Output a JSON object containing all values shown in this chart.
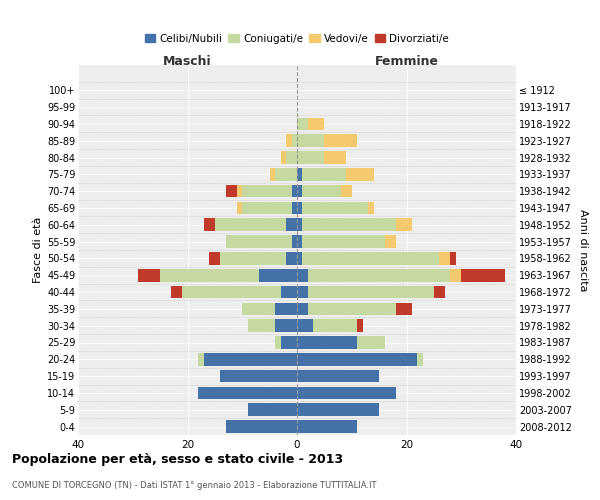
{
  "age_groups": [
    "0-4",
    "5-9",
    "10-14",
    "15-19",
    "20-24",
    "25-29",
    "30-34",
    "35-39",
    "40-44",
    "45-49",
    "50-54",
    "55-59",
    "60-64",
    "65-69",
    "70-74",
    "75-79",
    "80-84",
    "85-89",
    "90-94",
    "95-99",
    "100+"
  ],
  "birth_years": [
    "2008-2012",
    "2003-2007",
    "1998-2002",
    "1993-1997",
    "1988-1992",
    "1983-1987",
    "1978-1982",
    "1973-1977",
    "1968-1972",
    "1963-1967",
    "1958-1962",
    "1953-1957",
    "1948-1952",
    "1943-1947",
    "1938-1942",
    "1933-1937",
    "1928-1932",
    "1923-1927",
    "1918-1922",
    "1913-1917",
    "≤ 1912"
  ],
  "colors": {
    "celibi": "#4472a8",
    "coniugati": "#c5d9a0",
    "vedovi": "#f5c96e",
    "divorziati": "#c0392b"
  },
  "male": {
    "celibi": [
      13,
      9,
      18,
      14,
      17,
      3,
      4,
      4,
      3,
      7,
      2,
      1,
      2,
      1,
      1,
      0,
      0,
      0,
      0,
      0,
      0
    ],
    "coniugati": [
      0,
      0,
      0,
      0,
      1,
      1,
      5,
      6,
      18,
      18,
      12,
      12,
      13,
      9,
      9,
      4,
      2,
      1,
      0,
      0,
      0
    ],
    "vedovi": [
      0,
      0,
      0,
      0,
      0,
      0,
      0,
      0,
      0,
      0,
      0,
      0,
      0,
      1,
      1,
      1,
      1,
      1,
      0,
      0,
      0
    ],
    "divorziati": [
      0,
      0,
      0,
      0,
      0,
      0,
      0,
      0,
      2,
      4,
      2,
      0,
      2,
      0,
      2,
      0,
      0,
      0,
      0,
      0,
      0
    ]
  },
  "female": {
    "celibi": [
      11,
      15,
      18,
      15,
      22,
      11,
      3,
      2,
      2,
      2,
      1,
      1,
      1,
      1,
      1,
      1,
      0,
      0,
      0,
      0,
      0
    ],
    "coniugati": [
      0,
      0,
      0,
      0,
      1,
      5,
      8,
      16,
      23,
      26,
      25,
      15,
      17,
      12,
      7,
      8,
      5,
      5,
      2,
      0,
      0
    ],
    "vedovi": [
      0,
      0,
      0,
      0,
      0,
      0,
      0,
      0,
      0,
      2,
      2,
      2,
      3,
      1,
      2,
      5,
      4,
      6,
      3,
      0,
      0
    ],
    "divorziati": [
      0,
      0,
      0,
      0,
      0,
      0,
      1,
      3,
      2,
      8,
      1,
      0,
      0,
      0,
      0,
      0,
      0,
      0,
      0,
      0,
      0
    ]
  },
  "xlim": 40,
  "title": "Popolazione per età, sesso e stato civile - 2013",
  "subtitle": "COMUNE DI TORCEGNO (TN) - Dati ISTAT 1° gennaio 2013 - Elaborazione TUTTITALIA.IT",
  "ylabel_left": "Fasce di età",
  "ylabel_right": "Anni di nascita",
  "xlabel_maschi": "Maschi",
  "xlabel_femmine": "Femmine",
  "legend_labels": [
    "Celibi/Nubili",
    "Coniugati/e",
    "Vedovi/e",
    "Divorziati/e"
  ],
  "bg_color": "#eeeeee",
  "bar_height": 0.75
}
